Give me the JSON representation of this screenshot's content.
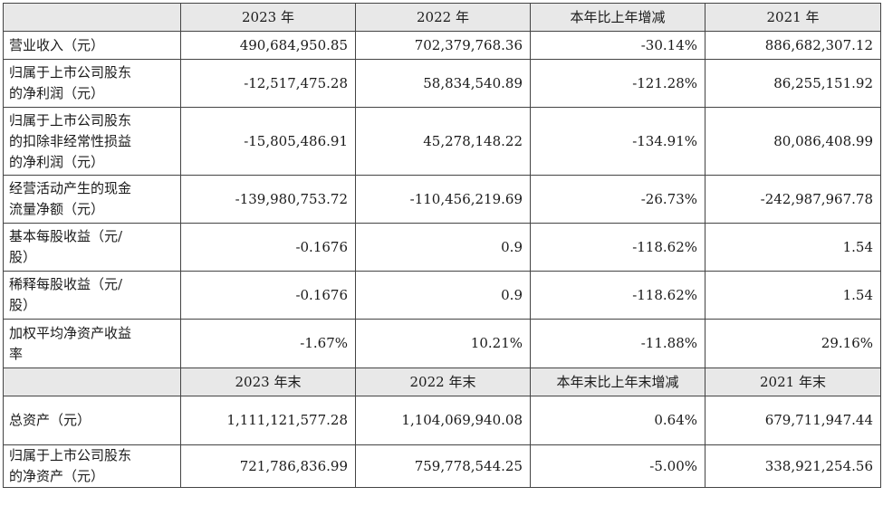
{
  "header1": [
    "2023 年",
    "2022 年",
    "本年比上年增减",
    "2021 年"
  ],
  "rows1": [
    {
      "label": [
        "营业收入（元）"
      ],
      "v": [
        "490,684,950.85",
        "702,379,768.36",
        "-30.14%",
        "886,682,307.12"
      ]
    },
    {
      "label": [
        "归属于上市公司股东",
        "的净利润（元）"
      ],
      "v": [
        "-12,517,475.28",
        "58,834,540.89",
        "-121.28%",
        "86,255,151.92"
      ]
    },
    {
      "label": [
        "归属于上市公司股东",
        "的扣除非经常性损益",
        "的净利润（元）"
      ],
      "v": [
        "-15,805,486.91",
        "45,278,148.22",
        "-134.91%",
        "80,086,408.99"
      ]
    },
    {
      "label": [
        "经营活动产生的现金",
        "流量净额（元）"
      ],
      "v": [
        "-139,980,753.72",
        "-110,456,219.69",
        "-26.73%",
        "-242,987,967.78"
      ]
    },
    {
      "label": [
        "基本每股收益（元/",
        "股）"
      ],
      "v": [
        "-0.1676",
        "0.9",
        "-118.62%",
        "1.54"
      ]
    },
    {
      "label": [
        "稀释每股收益（元/",
        "股）"
      ],
      "v": [
        "-0.1676",
        "0.9",
        "-118.62%",
        "1.54"
      ]
    },
    {
      "label": [
        "加权平均净资产收益",
        "率"
      ],
      "v": [
        "-1.67%",
        "10.21%",
        "-11.88%",
        "29.16%"
      ]
    }
  ],
  "header2": [
    "2023 年末",
    "2022 年末",
    "本年末比上年末增减",
    "2021 年末"
  ],
  "rows2": [
    {
      "label": [
        "总资产（元）"
      ],
      "v": [
        "1,111,121,577.28",
        "1,104,069,940.08",
        "0.64%",
        "679,711,947.44"
      ]
    },
    {
      "label": [
        "归属于上市公司股东",
        "的净资产（元）"
      ],
      "v": [
        "721,786,836.99",
        "759,778,544.25",
        "-5.00%",
        "338,921,254.56"
      ]
    }
  ]
}
